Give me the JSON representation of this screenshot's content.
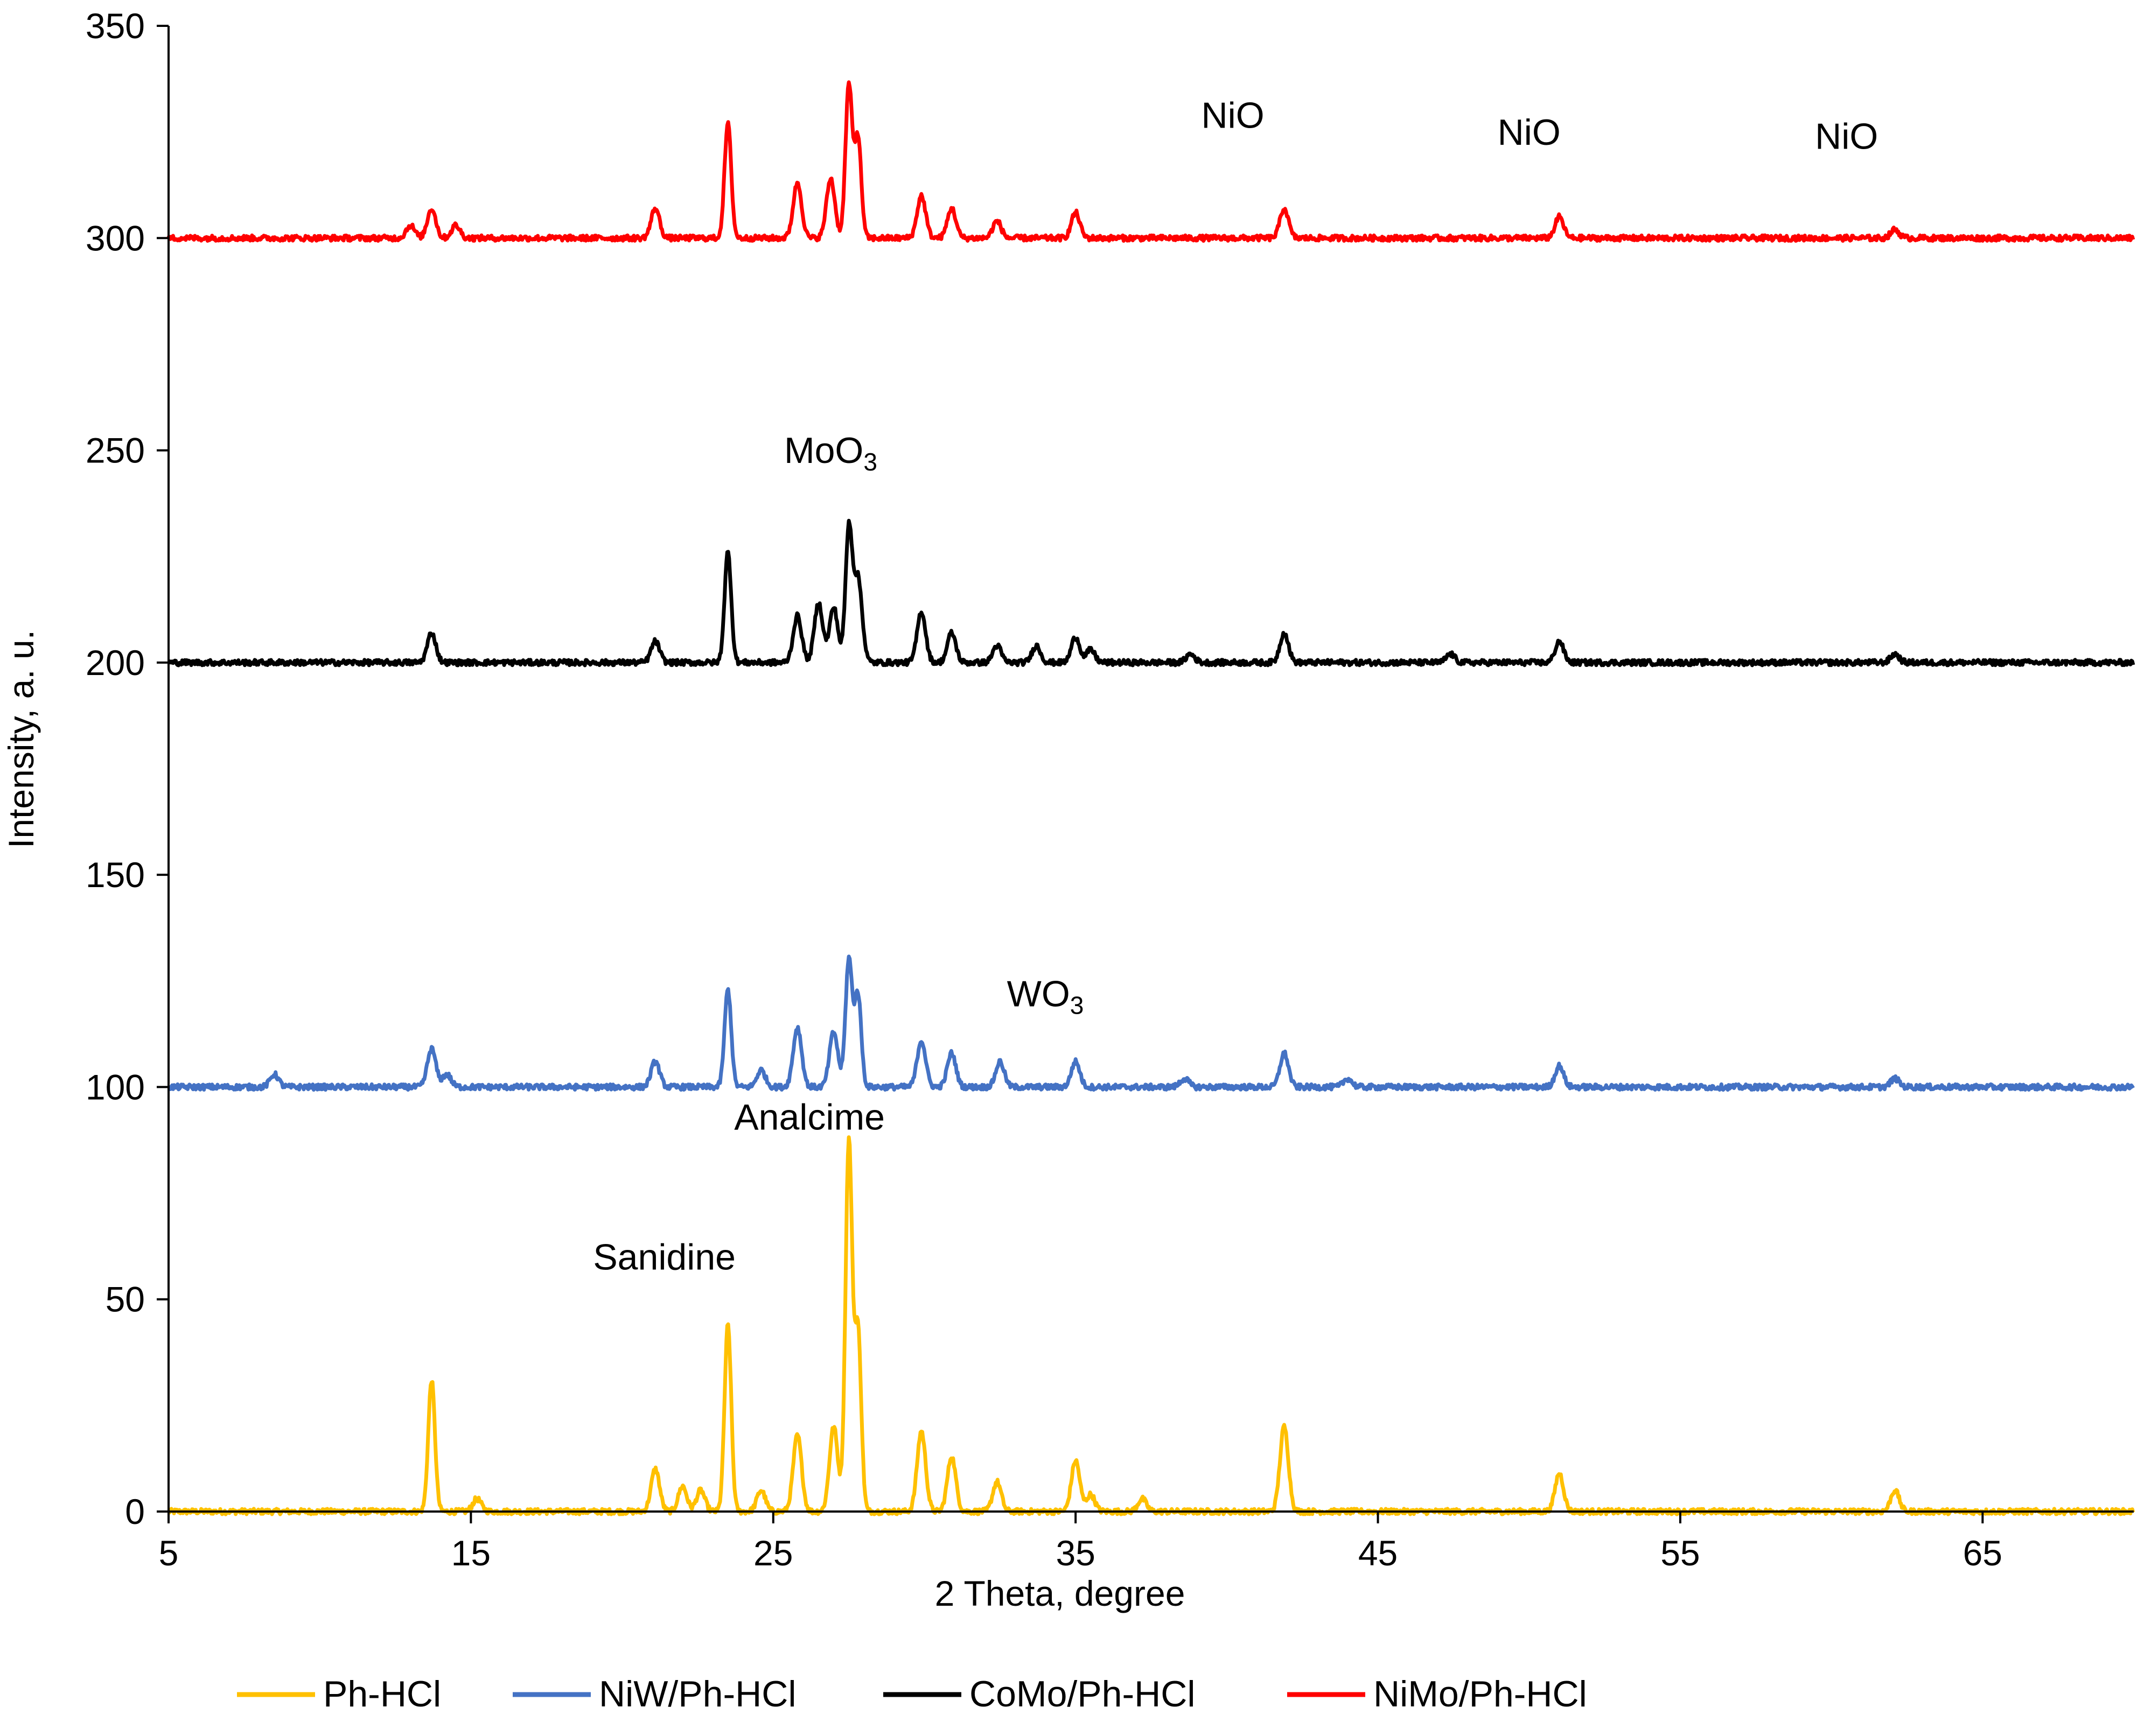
{
  "chart_data": {
    "type": "line",
    "title": "",
    "xlabel": "2 Theta, degree",
    "ylabel": "Intensity, a. u.",
    "xlim": [
      5,
      70
    ],
    "ylim": [
      0,
      350
    ],
    "xticks": [
      5,
      15,
      25,
      35,
      45,
      55,
      65
    ],
    "yticks": [
      0,
      50,
      100,
      150,
      200,
      250,
      300,
      350
    ],
    "grid": false,
    "legend_position": "bottom",
    "series": [
      {
        "name": "Ph-HCl",
        "color": "#FFC000",
        "baseline": 0,
        "peaks": [
          [
            13.7,
            31
          ],
          [
            15.2,
            3
          ],
          [
            21.1,
            10
          ],
          [
            22.0,
            6
          ],
          [
            22.6,
            5
          ],
          [
            23.5,
            44
          ],
          [
            24.6,
            5
          ],
          [
            25.8,
            18
          ],
          [
            27.0,
            20
          ],
          [
            27.5,
            87
          ],
          [
            27.8,
            43
          ],
          [
            29.9,
            19
          ],
          [
            30.9,
            13
          ],
          [
            32.4,
            7
          ],
          [
            35.0,
            12
          ],
          [
            35.5,
            4
          ],
          [
            37.2,
            3
          ],
          [
            41.9,
            20
          ],
          [
            51.0,
            9
          ],
          [
            62.1,
            5
          ]
        ]
      },
      {
        "name": "NiW/Ph-HCl",
        "color": "#4472C4",
        "baseline": 100,
        "peaks": [
          [
            8.5,
            3
          ],
          [
            13.7,
            9
          ],
          [
            14.2,
            3
          ],
          [
            21.1,
            6
          ],
          [
            23.5,
            23
          ],
          [
            24.6,
            4
          ],
          [
            25.8,
            14
          ],
          [
            27.0,
            13
          ],
          [
            27.5,
            30
          ],
          [
            27.8,
            22
          ],
          [
            29.9,
            11
          ],
          [
            30.9,
            8
          ],
          [
            32.5,
            6
          ],
          [
            35.0,
            6
          ],
          [
            38.6,
            2
          ],
          [
            41.9,
            8
          ],
          [
            44.0,
            2
          ],
          [
            51.0,
            5
          ],
          [
            62.1,
            2
          ]
        ]
      },
      {
        "name": "CoMo/Ph-HCl",
        "color": "#000000",
        "baseline": 200,
        "peaks": [
          [
            13.7,
            7
          ],
          [
            21.1,
            5
          ],
          [
            23.5,
            26
          ],
          [
            25.8,
            11
          ],
          [
            26.5,
            14
          ],
          [
            27.0,
            13
          ],
          [
            27.5,
            31
          ],
          [
            27.8,
            20
          ],
          [
            29.9,
            12
          ],
          [
            30.9,
            7
          ],
          [
            32.4,
            4
          ],
          [
            33.7,
            4
          ],
          [
            35.0,
            6
          ],
          [
            35.5,
            3
          ],
          [
            38.8,
            2
          ],
          [
            41.9,
            7
          ],
          [
            47.4,
            2
          ],
          [
            51.0,
            5
          ],
          [
            62.1,
            2
          ]
        ]
      },
      {
        "name": "NiMo/Ph-HCl",
        "color": "#FF0000",
        "baseline": 300,
        "peaks": [
          [
            13.0,
            3
          ],
          [
            13.7,
            7
          ],
          [
            14.5,
            3
          ],
          [
            21.1,
            7
          ],
          [
            23.5,
            27
          ],
          [
            25.8,
            13
          ],
          [
            26.9,
            14
          ],
          [
            27.5,
            36
          ],
          [
            27.8,
            24
          ],
          [
            29.9,
            10
          ],
          [
            30.9,
            7
          ],
          [
            32.4,
            4
          ],
          [
            35.0,
            6
          ],
          [
            41.9,
            7
          ],
          [
            51.0,
            5
          ],
          [
            62.1,
            2
          ]
        ]
      }
    ],
    "annotations": [
      {
        "text": "NiO",
        "x": 40.2,
        "y": 326
      },
      {
        "text": "NiO",
        "x": 50.0,
        "y": 322
      },
      {
        "text": "NiO",
        "x": 60.5,
        "y": 321
      },
      {
        "text": "MoO",
        "sub": "3",
        "x": 26.9,
        "y": 247
      },
      {
        "text": "WO",
        "sub": "3",
        "x": 34.0,
        "y": 119
      },
      {
        "text": "Analcime",
        "x": 26.2,
        "y": 90
      },
      {
        "text": "Sanidine",
        "x": 21.4,
        "y": 57
      }
    ]
  }
}
